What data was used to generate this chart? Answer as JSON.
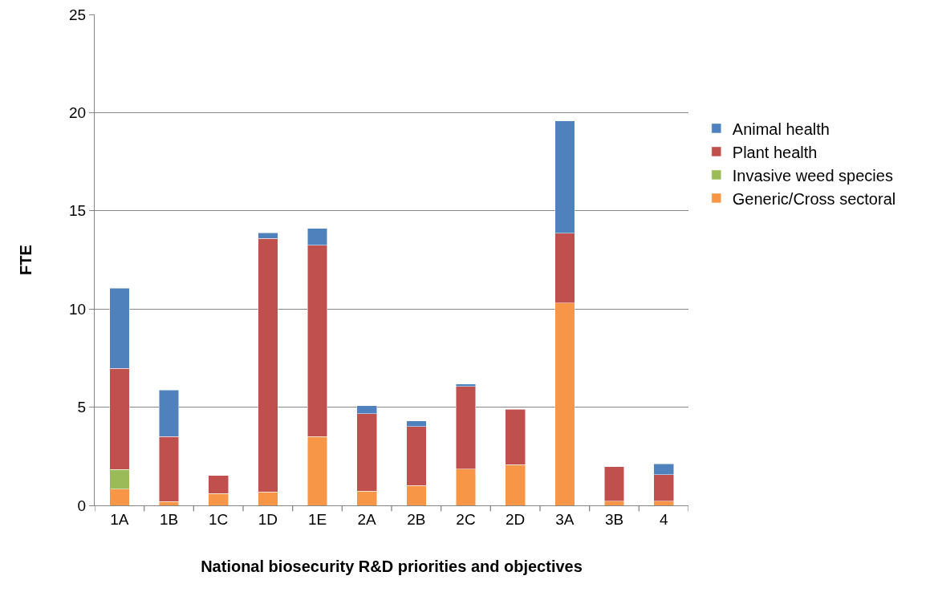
{
  "chart_data": {
    "type": "bar",
    "stacked": true,
    "xlabel": "National biosecurity R&D priorities and objectives",
    "ylabel": "FTE",
    "categories": [
      "1A",
      "1B",
      "1C",
      "1D",
      "1E",
      "2A",
      "2B",
      "2C",
      "2D",
      "3A",
      "3B",
      "4"
    ],
    "series": [
      {
        "name": "Generic/Cross sectoral",
        "color": "#f79646",
        "values": [
          0.82,
          0.2,
          0.61,
          0.68,
          3.5,
          0.72,
          1.02,
          1.84,
          2.08,
          10.3,
          0.22,
          0.22
        ]
      },
      {
        "name": "Invasive weed species",
        "color": "#9bbb59",
        "values": [
          1.0,
          null,
          null,
          null,
          null,
          null,
          null,
          null,
          null,
          null,
          null,
          null
        ]
      },
      {
        "name": "Plant health",
        "color": "#c0504d",
        "values": [
          5.16,
          3.31,
          0.92,
          12.92,
          9.74,
          3.95,
          3.0,
          4.21,
          2.82,
          3.55,
          1.75,
          1.35
        ]
      },
      {
        "name": "Animal health",
        "color": "#4f81bd",
        "values": [
          4.09,
          2.37,
          null,
          0.27,
          0.86,
          0.4,
          0.27,
          0.12,
          null,
          5.73,
          null,
          0.55
        ]
      }
    ],
    "ylim": [
      0,
      25
    ],
    "yticks": [
      0,
      5,
      10,
      15,
      20,
      25
    ],
    "grid": "y",
    "legend": "right"
  }
}
